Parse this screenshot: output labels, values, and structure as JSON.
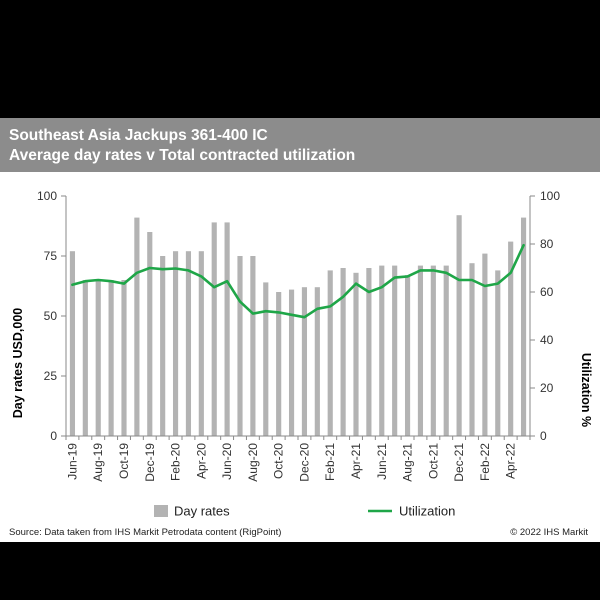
{
  "header": {
    "title_line1": "Southeast Asia Jackups 361-400 IC",
    "title_line2": "Average day rates v Total contracted utilization"
  },
  "footer": {
    "source": "Source:  Data taken  from IHS Markit Petrodata content (RigPoint)",
    "copyright": "© 2022  IHS Markit"
  },
  "colors": {
    "header_bg": "#8c8c8c",
    "bar": "#b3b3b3",
    "line": "#1fa648"
  },
  "chart_data": {
    "type": "bar",
    "title": "Southeast Asia Jackups 361-400 IC\nAverage day rates v Total contracted utilization",
    "ylabel": "Day rates USD,000",
    "ylabel_right": "Utilization %",
    "ylim": [
      0,
      100
    ],
    "ylim_right": [
      0,
      100
    ],
    "y_ticks": [
      "0",
      "25",
      "50",
      "75",
      "100"
    ],
    "y_ticks_right": [
      "0",
      "20",
      "40",
      "60",
      "80",
      "100"
    ],
    "x_tick_labels": [
      "Jun-19",
      "Aug-19",
      "Oct-19",
      "Dec-19",
      "Feb-20",
      "Apr-20",
      "Jun-20",
      "Aug-20",
      "Oct-20",
      "Dec-20",
      "Feb-21",
      "Apr-21",
      "Jun-21",
      "Aug-21",
      "Oct-21",
      "Dec-21",
      "Feb-22",
      "Apr-22"
    ],
    "categories": [
      "Jun-19",
      "Jul-19",
      "Aug-19",
      "Sep-19",
      "Oct-19",
      "Nov-19",
      "Dec-19",
      "Jan-20",
      "Feb-20",
      "Mar-20",
      "Apr-20",
      "May-20",
      "Jun-20",
      "Jul-20",
      "Aug-20",
      "Sep-20",
      "Oct-20",
      "Nov-20",
      "Dec-20",
      "Jan-21",
      "Feb-21",
      "Mar-21",
      "Apr-21",
      "May-21",
      "Jun-21",
      "Jul-21",
      "Aug-21",
      "Sep-21",
      "Oct-21",
      "Nov-21",
      "Dec-21",
      "Jan-22",
      "Feb-22",
      "Mar-22",
      "Apr-22",
      "May-22"
    ],
    "series": [
      {
        "name": "Day rates",
        "type": "bar",
        "axis": "left",
        "values": [
          77,
          65,
          65,
          65,
          65,
          91,
          85,
          75,
          77,
          77,
          77,
          89,
          89,
          75,
          75,
          64,
          60,
          61,
          62,
          62,
          69,
          70,
          68,
          70,
          71,
          71,
          67,
          71,
          71,
          71,
          92,
          72,
          76,
          69,
          81,
          91
        ]
      },
      {
        "name": "Utilization",
        "type": "line",
        "axis": "right",
        "values": [
          63,
          64.5,
          65,
          64.5,
          63.5,
          68,
          70,
          69.5,
          69.8,
          69,
          66.5,
          62,
          64.5,
          56,
          51,
          52,
          51.5,
          50.5,
          49.5,
          53,
          54,
          58,
          63.5,
          60,
          62,
          66,
          66.5,
          69,
          69,
          68,
          65,
          65,
          62.5,
          63.5,
          68,
          79.5
        ]
      }
    ],
    "legend": {
      "position": "bottom",
      "entries": [
        "Day rates",
        "Utilization"
      ]
    },
    "grid": false
  }
}
